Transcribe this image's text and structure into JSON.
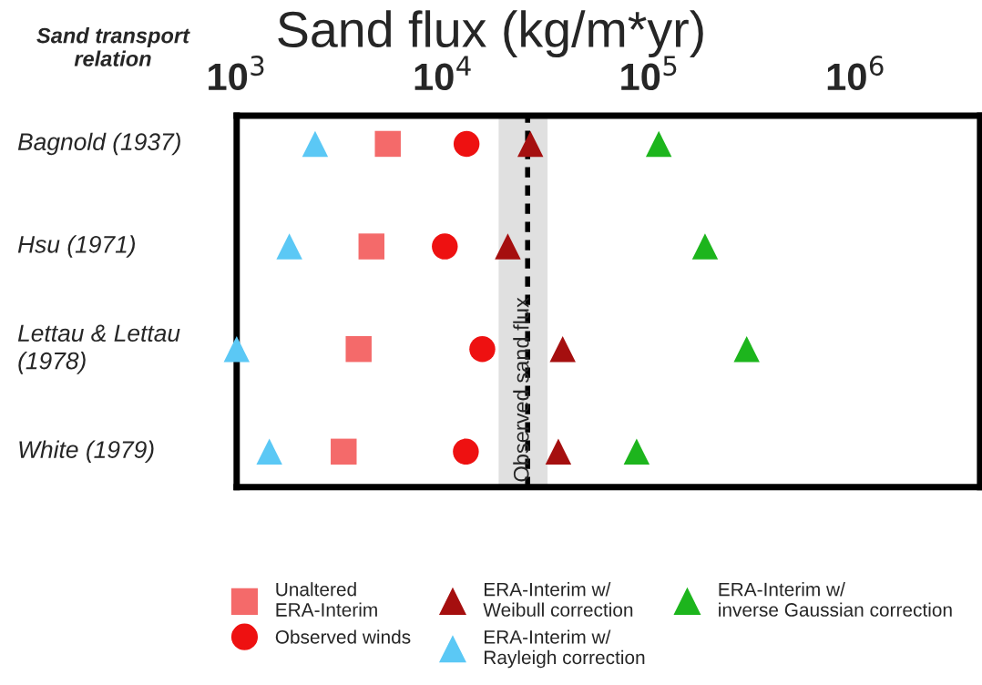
{
  "chart_data": {
    "type": "scatter",
    "orientation": "horizontal",
    "title": "Sand flux (kg/m*yr)",
    "ylabel": "Sand transport relation",
    "categories": [
      "Bagnold (1937)",
      "Hsu (1971)",
      "Lettau & Lettau\n(1978)",
      "White (1979)"
    ],
    "log": "x",
    "xlim": [
      1000,
      4000000
    ],
    "xticks": [
      {
        "value": 1000,
        "label": "10$^{3}$"
      },
      {
        "value": 10000,
        "label": "10$^{4}$"
      },
      {
        "value": 100000,
        "label": "10$^{5}$"
      },
      {
        "value": 1000000,
        "label": "10$^{6}$"
      }
    ],
    "grid": false,
    "legend": "bottom",
    "series": [
      {
        "name": "Unaltered\nERA-Interim",
        "color": "#f46a6a",
        "marker": "square",
        "values": [
          5400,
          4500,
          3900,
          3300
        ]
      },
      {
        "name": "Observed winds",
        "color": "#ee1111",
        "marker": "circle",
        "values": [
          13000,
          10200,
          15500,
          12900
        ]
      },
      {
        "name": "ERA-Interim w/\nWeibull correction",
        "color": "#a50f0f",
        "marker": "triangle",
        "values": [
          26500,
          20600,
          38000,
          36200
        ]
      },
      {
        "name": "ERA-Interim w/\nRayleigh correction",
        "color": "#5bc8f5",
        "marker": "triangle",
        "values": [
          2400,
          1800,
          1000,
          1440
        ]
      },
      {
        "name": "ERA-Interim w/\ninverse Gaussian correction",
        "color": "#1db51d",
        "marker": "triangle",
        "values": [
          111000,
          186000,
          296000,
          86700
        ]
      }
    ],
    "bands": [
      {
        "axis": "x",
        "from": 18600,
        "to": 32100,
        "label": "Observed sand flux",
        "color": "#e0e0e0"
      }
    ],
    "ref_lines": [
      {
        "axis": "x",
        "value": 25700,
        "color": "#000000",
        "line_style": "dashed"
      }
    ]
  }
}
